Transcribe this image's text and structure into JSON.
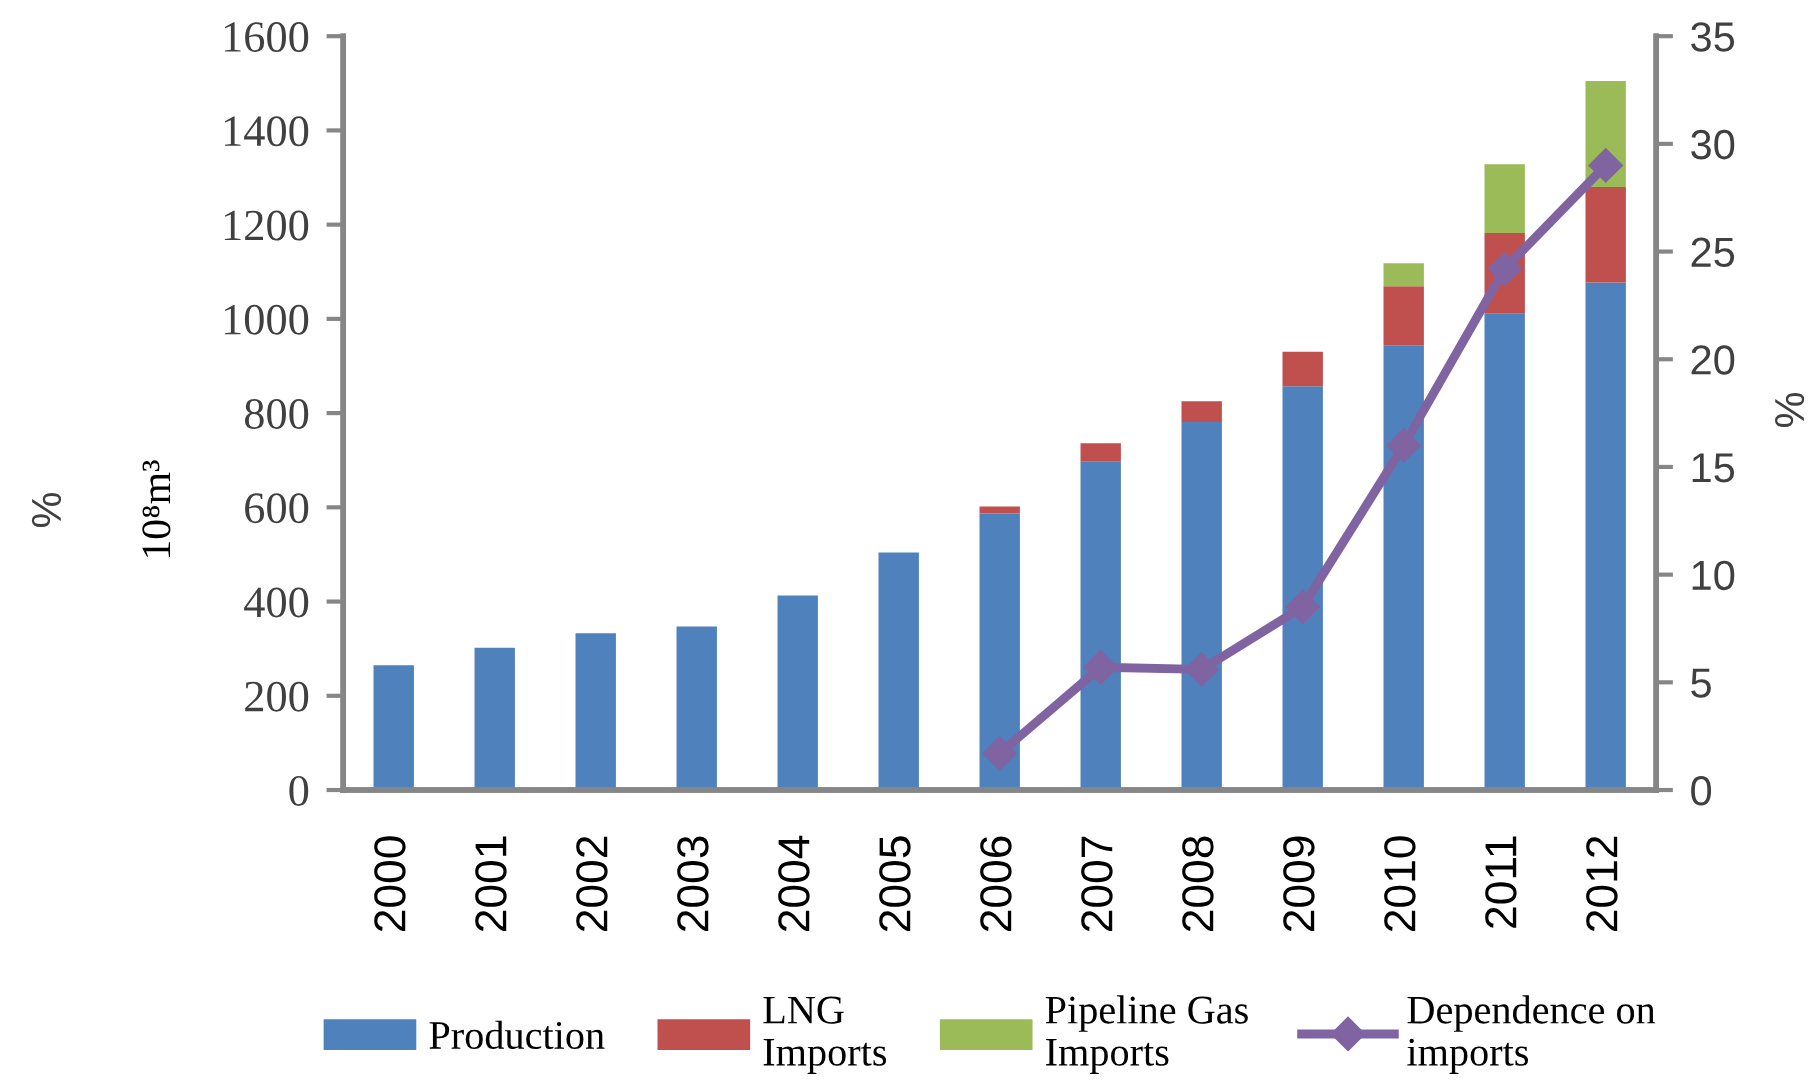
{
  "chart_data": {
    "type": "bar",
    "stacked": true,
    "categories": [
      "2000",
      "2001",
      "2002",
      "2003",
      "2004",
      "2005",
      "2006",
      "2007",
      "2008",
      "2009",
      "2010",
      "2011",
      "2012"
    ],
    "series": [
      {
        "name": "Production",
        "color": "#4f81bd",
        "values": [
          265,
          302,
          333,
          347,
          413,
          504,
          587,
          697,
          781,
          857,
          944,
          1011,
          1077
        ]
      },
      {
        "name": "LNG\nImports",
        "color": "#c0504d",
        "values": [
          null,
          null,
          null,
          null,
          null,
          null,
          15,
          39,
          44,
          73,
          125,
          171,
          203
        ]
      },
      {
        "name": "Pipeline Gas\nImports",
        "color": "#9bbb59",
        "values": [
          null,
          null,
          null,
          null,
          null,
          null,
          null,
          null,
          null,
          null,
          49,
          146,
          225
        ]
      },
      {
        "name": "Dependence on\nimports",
        "type": "line",
        "axis": "y2",
        "color": "#8064a2",
        "marker": "diamond",
        "line_style": "solid",
        "values": [
          null,
          null,
          null,
          null,
          null,
          null,
          1.7,
          5.7,
          5.6,
          8.5,
          16.0,
          24.2,
          29.0
        ]
      }
    ],
    "ylabel": "10⁸m³",
    "y2label": "%",
    "annotations": [
      "%"
    ],
    "ylim": [
      0,
      1600
    ],
    "yticks": [
      0,
      200,
      400,
      600,
      800,
      1000,
      1200,
      1400,
      1600
    ],
    "y2lim": [
      0,
      35
    ],
    "y2ticks": [
      0,
      5,
      10,
      15,
      20,
      25,
      30,
      35
    ],
    "grid": false,
    "legend": "bottom"
  }
}
